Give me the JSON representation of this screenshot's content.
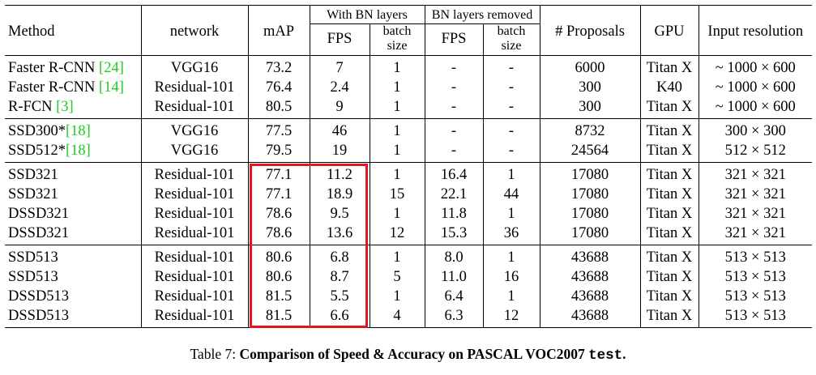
{
  "table": {
    "headers": {
      "method": "Method",
      "network": "network",
      "map": "mAP",
      "with_bn": "With BN layers",
      "bn_removed": "BN layers removed",
      "fps": "FPS",
      "batch_size": "batch size",
      "proposals": "# Proposals",
      "gpu": "GPU",
      "resolution": "Input resolution"
    },
    "groups": [
      [
        {
          "method": "Faster R-CNN ",
          "cite": "[24]",
          "network": "VGG16",
          "map": "73.2",
          "fps_bn": "7",
          "bs_bn": "1",
          "fps_nobn": "-",
          "bs_nobn": "-",
          "proposals": "6000",
          "gpu": "Titan X",
          "resolution": "~ 1000 × 600"
        },
        {
          "method": "Faster R-CNN ",
          "cite": "[14]",
          "network": "Residual-101",
          "map": "76.4",
          "fps_bn": "2.4",
          "bs_bn": "1",
          "fps_nobn": "-",
          "bs_nobn": "-",
          "proposals": "300",
          "gpu": "K40",
          "resolution": "~ 1000 × 600"
        },
        {
          "method": "R-FCN ",
          "cite": "[3]",
          "network": "Residual-101",
          "map": "80.5",
          "fps_bn": "9",
          "bs_bn": "1",
          "fps_nobn": "-",
          "bs_nobn": "-",
          "proposals": "300",
          "gpu": "Titan X",
          "resolution": "~ 1000 × 600"
        }
      ],
      [
        {
          "method": "SSD300*",
          "cite": "[18]",
          "network": "VGG16",
          "map": "77.5",
          "fps_bn": "46",
          "bs_bn": "1",
          "fps_nobn": "-",
          "bs_nobn": "-",
          "proposals": "8732",
          "gpu": "Titan X",
          "resolution": "300 × 300"
        },
        {
          "method": "SSD512*",
          "cite": "[18]",
          "network": "VGG16",
          "map": "79.5",
          "fps_bn": "19",
          "bs_bn": "1",
          "fps_nobn": "-",
          "bs_nobn": "-",
          "proposals": "24564",
          "gpu": "Titan X",
          "resolution": "512 × 512"
        }
      ],
      [
        {
          "method": "SSD321",
          "cite": "",
          "network": "Residual-101",
          "map": "77.1",
          "fps_bn": "11.2",
          "bs_bn": "1",
          "fps_nobn": "16.4",
          "bs_nobn": "1",
          "proposals": "17080",
          "gpu": "Titan X",
          "resolution": "321 × 321"
        },
        {
          "method": "SSD321",
          "cite": "",
          "network": "Residual-101",
          "map": "77.1",
          "fps_bn": "18.9",
          "bs_bn": "15",
          "fps_nobn": "22.1",
          "bs_nobn": "44",
          "proposals": "17080",
          "gpu": "Titan X",
          "resolution": "321 × 321"
        },
        {
          "method": "DSSD321",
          "cite": "",
          "network": "Residual-101",
          "map": "78.6",
          "fps_bn": "9.5",
          "bs_bn": "1",
          "fps_nobn": "11.8",
          "bs_nobn": "1",
          "proposals": "17080",
          "gpu": "Titan X",
          "resolution": "321 × 321"
        },
        {
          "method": "DSSD321",
          "cite": "",
          "network": "Residual-101",
          "map": "78.6",
          "fps_bn": "13.6",
          "bs_bn": "12",
          "fps_nobn": "15.3",
          "bs_nobn": "36",
          "proposals": "17080",
          "gpu": "Titan X",
          "resolution": "321 × 321"
        }
      ],
      [
        {
          "method": "SSD513",
          "cite": "",
          "network": "Residual-101",
          "map": "80.6",
          "fps_bn": "6.8",
          "bs_bn": "1",
          "fps_nobn": "8.0",
          "bs_nobn": "1",
          "proposals": "43688",
          "gpu": "Titan X",
          "resolution": "513 × 513"
        },
        {
          "method": "SSD513",
          "cite": "",
          "network": "Residual-101",
          "map": "80.6",
          "fps_bn": "8.7",
          "bs_bn": "5",
          "fps_nobn": "11.0",
          "bs_nobn": "16",
          "proposals": "43688",
          "gpu": "Titan X",
          "resolution": "513 × 513"
        },
        {
          "method": "DSSD513",
          "cite": "",
          "network": "Residual-101",
          "map": "81.5",
          "fps_bn": "5.5",
          "bs_bn": "1",
          "fps_nobn": "6.4",
          "bs_nobn": "1",
          "proposals": "43688",
          "gpu": "Titan X",
          "resolution": "513 × 513"
        },
        {
          "method": "DSSD513",
          "cite": "",
          "network": "Residual-101",
          "map": "81.5",
          "fps_bn": "6.6",
          "bs_bn": "4",
          "fps_nobn": "6.3",
          "bs_nobn": "12",
          "proposals": "43688",
          "gpu": "Titan X",
          "resolution": "513 × 513"
        }
      ]
    ]
  },
  "caption": {
    "prefix": "Table 7: ",
    "bold": "Comparison of Speed & Accuracy on PASCAL VOC2007 ",
    "mono": "test",
    "end": "."
  },
  "colors": {
    "highlight": "#e8141b",
    "citation": "#22cc22"
  }
}
